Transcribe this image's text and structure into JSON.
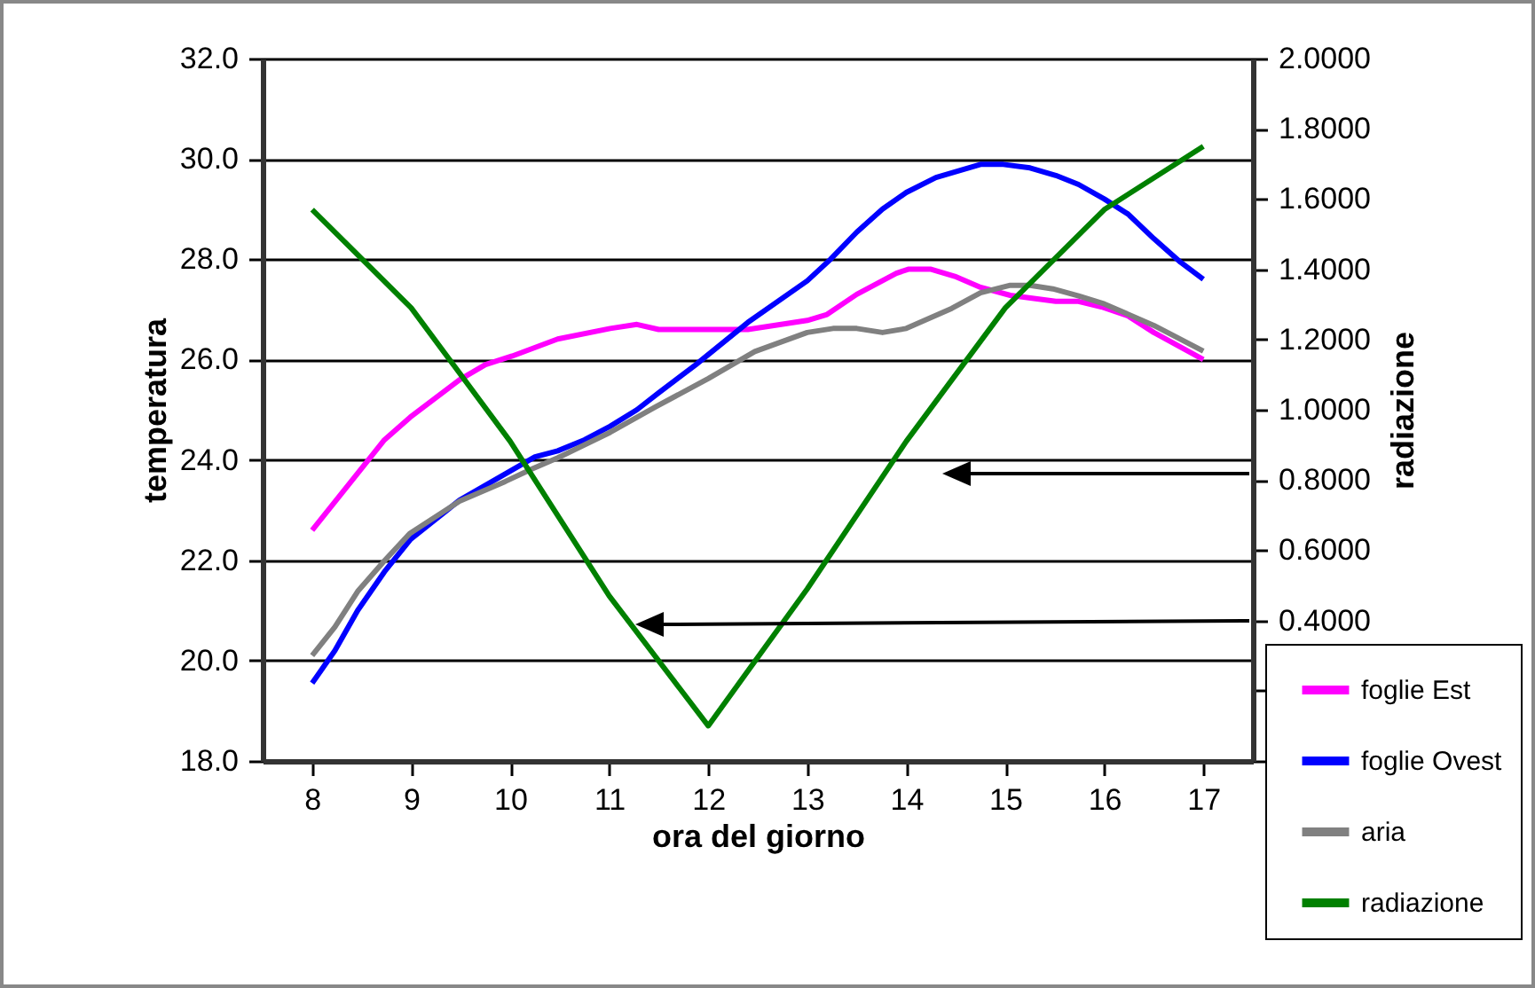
{
  "chart_data": {
    "type": "line",
    "xlabel": "ora del giorno",
    "ylabel": "temperatura",
    "y2label": "radiazione",
    "xlim": [
      7.5,
      17.5
    ],
    "xticks": [
      8,
      9,
      10,
      11,
      12,
      13,
      14,
      15,
      16,
      17
    ],
    "ylim": [
      18,
      32
    ],
    "yticks": [
      {
        "value": 18,
        "label": "18.0"
      },
      {
        "value": 20,
        "label": "20.0"
      },
      {
        "value": 22,
        "label": "22.0"
      },
      {
        "value": 24,
        "label": "24.0"
      },
      {
        "value": 26,
        "label": "26.0"
      },
      {
        "value": 28,
        "label": "28.0"
      },
      {
        "value": 30,
        "label": "30.0"
      },
      {
        "value": 32,
        "label": "32.0"
      }
    ],
    "y2lim": [
      0,
      2
    ],
    "y2ticks": [
      {
        "value": 0,
        "label": null
      },
      {
        "value": 0.2,
        "label": null
      },
      {
        "value": 0.4,
        "label": "0.4000"
      },
      {
        "value": 0.6,
        "label": "0.6000"
      },
      {
        "value": 0.8,
        "label": "0.8000"
      },
      {
        "value": 1,
        "label": "1.0000"
      },
      {
        "value": 1.2,
        "label": "1.2000"
      },
      {
        "value": 1.4,
        "label": "1.4000"
      },
      {
        "value": 1.6,
        "label": "1.6000"
      },
      {
        "value": 1.8,
        "label": "1.8000"
      },
      {
        "value": 2,
        "label": "2.0000"
      }
    ],
    "grid": "y",
    "legend": "bottom right",
    "marker": "none",
    "line_style": "solid",
    "series": [
      {
        "name": "foglie Est",
        "color": "#ff00ff",
        "x": [
          8,
          8.73,
          8.99,
          9.49,
          9.75,
          10.02,
          10.48,
          11.01,
          11.28,
          11.5,
          12.4,
          13.0,
          13.2,
          13.5,
          13.9,
          14.02,
          14.25,
          14.49,
          14.75,
          15.05,
          15.51,
          15.74,
          15.97,
          16.24,
          16.5,
          17
        ],
        "values": [
          22.6,
          24.4,
          24.85,
          25.6,
          25.9,
          26.07,
          26.41,
          26.62,
          26.7,
          26.6,
          26.6,
          26.78,
          26.9,
          27.3,
          27.72,
          27.8,
          27.8,
          27.66,
          27.44,
          27.28,
          27.16,
          27.16,
          27.05,
          26.87,
          26.54,
          26.0
        ]
      },
      {
        "name": "foglie Ovest",
        "color": "#0000ff",
        "x": [
          8,
          8.23,
          8.46,
          8.73,
          8.99,
          9.49,
          10.02,
          10.25,
          10.48,
          10.75,
          11.01,
          11.28,
          11.5,
          11.87,
          12.4,
          13.0,
          13.23,
          13.5,
          13.76,
          14.0,
          14.3,
          14.75,
          14.98,
          15.25,
          15.51,
          15.74,
          16.0,
          16.24,
          16.5,
          16.77,
          17
        ],
        "values": [
          19.55,
          20.2,
          21.0,
          21.77,
          22.41,
          23.2,
          23.8,
          24.06,
          24.18,
          24.4,
          24.67,
          25.0,
          25.34,
          25.89,
          26.74,
          27.57,
          27.99,
          28.54,
          29.0,
          29.33,
          29.63,
          29.89,
          29.89,
          29.82,
          29.67,
          29.49,
          29.2,
          28.9,
          28.41,
          27.94,
          27.6
        ]
      },
      {
        "name": "aria",
        "color": "#808080",
        "x": [
          8,
          8.23,
          8.46,
          8.73,
          8.99,
          9.49,
          9.95,
          10.22,
          10.48,
          11.01,
          11.47,
          12.0,
          12.47,
          13.0,
          13.26,
          13.5,
          13.76,
          14.0,
          14.46,
          14.75,
          15.05,
          15.25,
          15.48,
          15.74,
          16.0,
          16.5,
          17
        ],
        "values": [
          20.1,
          20.67,
          21.38,
          21.99,
          22.54,
          23.18,
          23.57,
          23.82,
          24.04,
          24.55,
          25.06,
          25.62,
          26.16,
          26.54,
          26.62,
          26.62,
          26.54,
          26.62,
          27.02,
          27.33,
          27.48,
          27.48,
          27.41,
          27.27,
          27.11,
          26.68,
          26.17
        ]
      },
      {
        "name": "radiazione",
        "color": "#008000",
        "axis": "y2",
        "x": [
          8,
          9,
          10,
          11,
          12,
          13,
          14,
          15,
          16,
          17
        ],
        "values": [
          1.57,
          1.29,
          0.91,
          0.47,
          0.1,
          0.49,
          0.91,
          1.29,
          1.57,
          1.75
        ]
      }
    ]
  }
}
